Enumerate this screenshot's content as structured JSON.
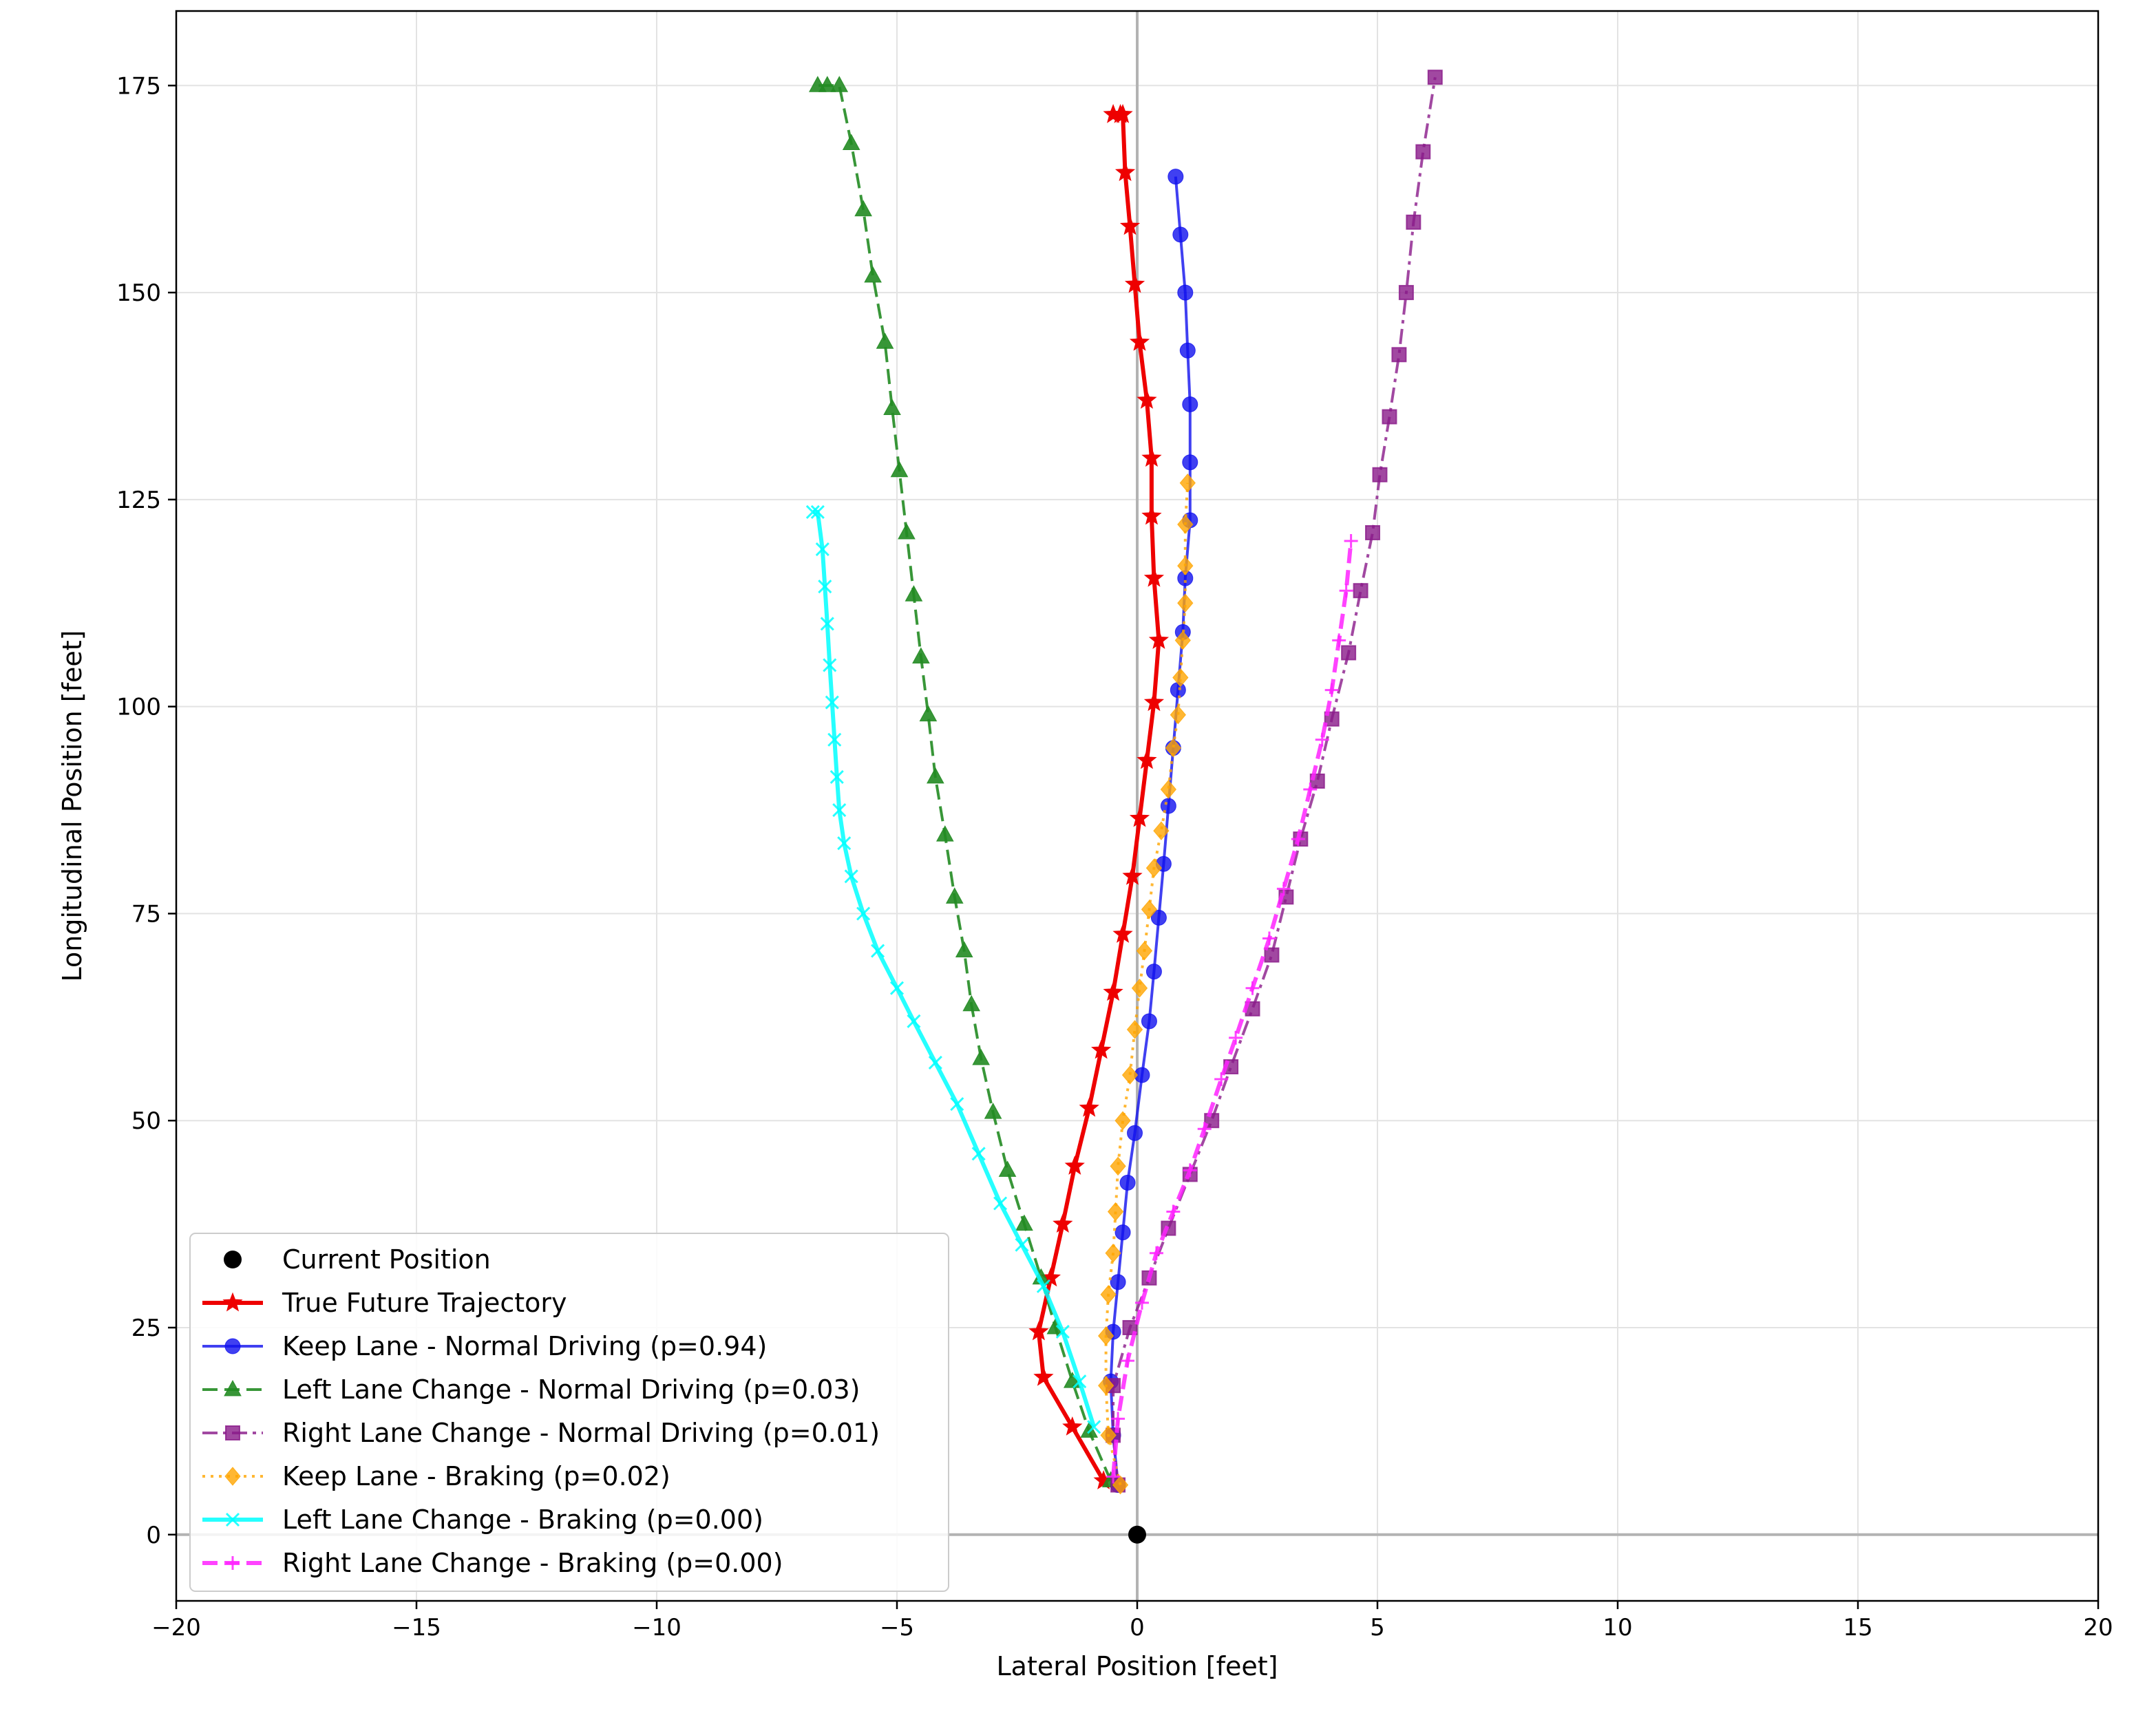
{
  "chart_data": {
    "type": "line",
    "title": "",
    "xlabel": "Lateral Position [feet]",
    "ylabel": "Longitudinal Position [feet]",
    "xlim": [
      -20,
      20
    ],
    "ylim": [
      -8,
      184
    ],
    "xticks": [
      -20,
      -15,
      -10,
      -5,
      0,
      5,
      10,
      15,
      20
    ],
    "yticks": [
      0,
      25,
      50,
      75,
      100,
      125,
      150,
      175
    ],
    "grid": true,
    "reference_lines": [
      {
        "axis": "x",
        "value": 0
      },
      {
        "axis": "y",
        "value": 0
      }
    ],
    "legend_position": "lower-left",
    "current_position": {
      "name": "Current Position",
      "x": 0,
      "y": 0,
      "color": "#000000"
    },
    "series": [
      {
        "name": "True Future Trajectory",
        "color": "#ee0000",
        "line_style": "solid",
        "marker": "star",
        "line_width": 3,
        "opacity": 1,
        "x": [
          -0.7,
          -1.35,
          -1.95,
          -2.05,
          -1.8,
          -1.55,
          -1.3,
          -1.0,
          -0.75,
          -0.5,
          -0.3,
          -0.1,
          0.05,
          0.2,
          0.35,
          0.45,
          0.35,
          0.3,
          0.3,
          0.2,
          0.05,
          -0.05,
          -0.15,
          -0.25,
          -0.3,
          -0.35,
          -0.5
        ],
        "y": [
          6.5,
          13,
          19,
          24.5,
          31,
          37.5,
          44.5,
          51.5,
          58.5,
          65.5,
          72.5,
          79.5,
          86.5,
          93.5,
          100.5,
          108,
          115.5,
          123,
          130,
          137,
          144,
          151,
          158,
          164.5,
          171.5,
          171.5,
          171.5
        ]
      },
      {
        "name": "Keep Lane - Normal Driving (p=0.94)",
        "color": "#1010ee",
        "line_style": "solid",
        "marker": "circle",
        "line_width": 2,
        "opacity": 0.8,
        "x": [
          -0.4,
          -0.5,
          -0.55,
          -0.5,
          -0.4,
          -0.3,
          -0.2,
          -0.05,
          0.1,
          0.25,
          0.35,
          0.45,
          0.55,
          0.65,
          0.75,
          0.85,
          0.95,
          1.0,
          1.1,
          1.1,
          1.1,
          1.05,
          1.0,
          0.9,
          0.8
        ],
        "y": [
          6,
          12,
          18.5,
          24.5,
          30.5,
          36.5,
          42.5,
          48.5,
          55.5,
          62,
          68,
          74.5,
          81,
          88,
          95,
          102,
          109,
          115.5,
          122.5,
          129.5,
          136.5,
          143,
          150,
          157,
          164
        ]
      },
      {
        "name": "Left Lane Change - Normal Driving (p=0.03)",
        "color": "#228b22",
        "line_style": "dashed",
        "marker": "triangle",
        "line_width": 2,
        "opacity": 0.9,
        "x": [
          -0.55,
          -1.0,
          -1.35,
          -1.7,
          -2.0,
          -2.35,
          -2.7,
          -3.0,
          -3.25,
          -3.45,
          -3.6,
          -3.8,
          -4.0,
          -4.2,
          -4.35,
          -4.5,
          -4.65,
          -4.8,
          -4.95,
          -5.1,
          -5.25,
          -5.5,
          -5.7,
          -5.95,
          -6.2,
          -6.45,
          -6.65
        ],
        "y": [
          6.5,
          12.5,
          18.5,
          25,
          31,
          37.5,
          44,
          51,
          57.5,
          64,
          70.5,
          77,
          84.5,
          91.5,
          99,
          106,
          113.5,
          121,
          128.5,
          136,
          144,
          152,
          160,
          168,
          175,
          175,
          175
        ]
      },
      {
        "name": "Right Lane Change - Normal Driving (p=0.01)",
        "color": "#8a1a8a",
        "line_style": "dashdot",
        "marker": "square",
        "line_width": 2,
        "opacity": 0.8,
        "x": [
          -0.4,
          -0.5,
          -0.5,
          -0.15,
          0.25,
          0.65,
          1.1,
          1.55,
          1.95,
          2.4,
          2.8,
          3.1,
          3.4,
          3.75,
          4.05,
          4.4,
          4.65,
          4.9,
          5.05,
          5.25,
          5.45,
          5.6,
          5.75,
          5.95,
          6.2
        ],
        "y": [
          6,
          12,
          18,
          25,
          31,
          37,
          43.5,
          50,
          56.5,
          63.5,
          70,
          77,
          84,
          91,
          98.5,
          106.5,
          114,
          121,
          128,
          135,
          142.5,
          150,
          158.5,
          167,
          176
        ]
      },
      {
        "name": "Keep Lane - Braking (p=0.02)",
        "color": "#ffa500",
        "line_style": "dotted",
        "marker": "diamond",
        "line_width": 2,
        "opacity": 0.8,
        "x": [
          -0.35,
          -0.6,
          -0.65,
          -0.65,
          -0.6,
          -0.5,
          -0.45,
          -0.4,
          -0.3,
          -0.15,
          -0.05,
          0.05,
          0.15,
          0.25,
          0.35,
          0.5,
          0.65,
          0.75,
          0.85,
          0.9,
          0.95,
          1.0,
          1.0,
          1.0,
          1.05
        ],
        "y": [
          6,
          12,
          18,
          24,
          29,
          34,
          39,
          44.5,
          50,
          55.5,
          61,
          66,
          70.5,
          75.5,
          80.5,
          85,
          90,
          95,
          99,
          103.5,
          108,
          112.5,
          117,
          122,
          127
        ]
      },
      {
        "name": "Left Lane Change - Braking (p=0.00)",
        "color": "#00ffff",
        "line_style": "solid",
        "marker": "x",
        "line_width": 3,
        "opacity": 0.85,
        "x": [
          -0.9,
          -1.2,
          -1.55,
          -1.95,
          -2.4,
          -2.85,
          -3.3,
          -3.75,
          -4.2,
          -4.65,
          -5.0,
          -5.4,
          -5.7,
          -5.95,
          -6.1,
          -6.2,
          -6.25,
          -6.3,
          -6.35,
          -6.4,
          -6.45,
          -6.5,
          -6.55,
          -6.65,
          -6.75
        ],
        "y": [
          13,
          18.5,
          24.5,
          30,
          35,
          40,
          46,
          52,
          57,
          62,
          66,
          70.5,
          75,
          79.5,
          83.5,
          87.5,
          91.5,
          96,
          100.5,
          105,
          110,
          114.5,
          119,
          123.5,
          123.5
        ]
      },
      {
        "name": "Right Lane Change - Braking (p=0.00)",
        "color": "#ff22ff",
        "line_style": "dashed",
        "marker": "plus",
        "line_width": 3,
        "opacity": 0.85,
        "x": [
          -0.5,
          -0.4,
          -0.2,
          0.1,
          0.4,
          0.75,
          1.1,
          1.4,
          1.75,
          2.05,
          2.4,
          2.75,
          3.05,
          3.35,
          3.6,
          3.85,
          4.05,
          4.2,
          4.35,
          4.45
        ],
        "y": [
          7,
          14,
          21,
          28,
          34,
          39,
          44,
          49,
          55,
          60,
          66,
          72,
          78,
          84,
          90,
          96,
          102,
          108,
          114,
          120
        ]
      }
    ]
  }
}
